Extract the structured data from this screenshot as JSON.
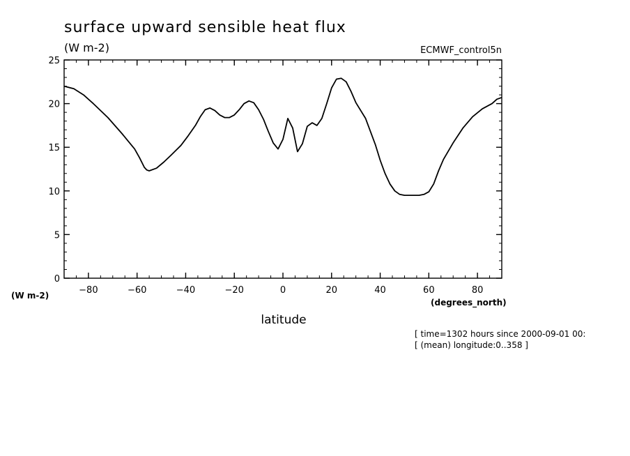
{
  "chart_data": {
    "type": "line",
    "title": "surface upward sensible heat flux",
    "units": "(W m-2)",
    "source": "ECMWF_control5n",
    "xlabel": "latitude",
    "xunits": "(degrees_north)",
    "yunits": "(W m-2)",
    "xlim": [
      -90,
      90
    ],
    "ylim": [
      0,
      25
    ],
    "xticks": [
      -80,
      -60,
      -40,
      -20,
      0,
      20,
      40,
      60,
      80
    ],
    "yticks": [
      0,
      5,
      10,
      15,
      20,
      25
    ],
    "grid": false,
    "series": [
      {
        "color": "#000000",
        "x": [
          -90,
          -86,
          -82,
          -78,
          -72,
          -66,
          -61,
          -59,
          -57,
          -56,
          -55,
          -52,
          -49,
          -46,
          -42,
          -39,
          -36,
          -34,
          -32,
          -30,
          -28,
          -26,
          -24,
          -22,
          -20,
          -18,
          -16,
          -14,
          -12,
          -10,
          -8,
          -6,
          -4,
          -2,
          0,
          2,
          4,
          6,
          8,
          10,
          12,
          14,
          16,
          18,
          20,
          22,
          24,
          26,
          28,
          30,
          34,
          36,
          38,
          40,
          42,
          44,
          46,
          48,
          50,
          52,
          54,
          56,
          58,
          60,
          62,
          64,
          66,
          70,
          74,
          78,
          82,
          86,
          88,
          90
        ],
        "values": [
          22.0,
          21.7,
          21.0,
          20.0,
          18.4,
          16.5,
          14.8,
          13.8,
          12.7,
          12.4,
          12.3,
          12.6,
          13.3,
          14.1,
          15.2,
          16.3,
          17.5,
          18.5,
          19.3,
          19.5,
          19.2,
          18.7,
          18.4,
          18.4,
          18.7,
          19.3,
          20.0,
          20.3,
          20.1,
          19.3,
          18.2,
          16.8,
          15.5,
          14.8,
          15.9,
          18.3,
          17.2,
          14.5,
          15.4,
          17.4,
          17.8,
          17.5,
          18.3,
          20.0,
          21.8,
          22.8,
          22.9,
          22.5,
          21.4,
          20.1,
          18.3,
          16.8,
          15.3,
          13.5,
          12.0,
          10.8,
          10.0,
          9.6,
          9.5,
          9.5,
          9.5,
          9.5,
          9.6,
          9.9,
          10.8,
          12.3,
          13.6,
          15.5,
          17.2,
          18.5,
          19.4,
          20.0,
          20.5,
          20.7
        ]
      }
    ]
  },
  "annotations": {
    "time": "[ time=1302 hours since 2000-09-01 00:",
    "longitude": "[ (mean) longitude:0..358 ]"
  }
}
